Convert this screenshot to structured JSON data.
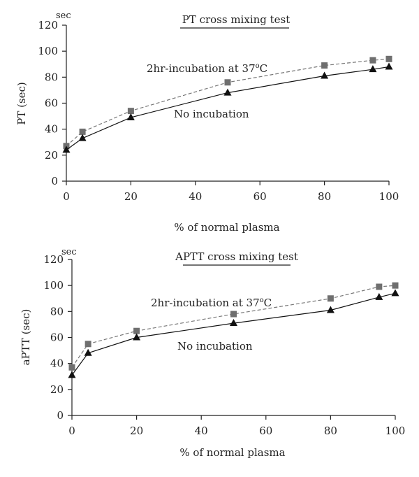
{
  "chart_data": [
    {
      "type": "line",
      "title": "PT cross mixing test",
      "unit_label": "sec",
      "xlabel": "% of normal plasma",
      "ylabel": "PT (sec)",
      "xlim": [
        0,
        100
      ],
      "ylim": [
        0,
        120
      ],
      "xticks": [
        0,
        20,
        40,
        60,
        80,
        100
      ],
      "yticks": [
        0,
        20,
        40,
        60,
        80,
        100,
        120
      ],
      "grid": false,
      "series": [
        {
          "name": "2hr-incubation at 37",
          "name_sup": "o",
          "name_suffix": "C",
          "marker": "square",
          "style": "dashed",
          "color": "#6f6f6f",
          "x": [
            0,
            5,
            20,
            50,
            80,
            95,
            100
          ],
          "y": [
            27,
            38,
            54,
            76,
            89,
            93,
            94
          ]
        },
        {
          "name": "No incubation",
          "marker": "triangle",
          "style": "solid",
          "color": "#111111",
          "x": [
            0,
            5,
            20,
            50,
            80,
            95,
            100
          ],
          "y": [
            24,
            33,
            49,
            68,
            81,
            86,
            88
          ]
        }
      ]
    },
    {
      "type": "line",
      "title": "APTT cross mixing test",
      "unit_label": "sec",
      "xlabel": "% of normal plasma",
      "ylabel": "aPTT (sec)",
      "xlim": [
        0,
        100
      ],
      "ylim": [
        0,
        120
      ],
      "xticks": [
        0,
        20,
        40,
        60,
        80,
        100
      ],
      "yticks": [
        0,
        20,
        40,
        60,
        80,
        100,
        120
      ],
      "grid": false,
      "series": [
        {
          "name": "2hr-incubation at 37",
          "name_sup": "o",
          "name_suffix": "C",
          "marker": "square",
          "style": "dashed",
          "color": "#6f6f6f",
          "x": [
            0,
            5,
            20,
            50,
            80,
            95,
            100
          ],
          "y": [
            37,
            55,
            65,
            78,
            90,
            99,
            100
          ]
        },
        {
          "name": "No incubation",
          "marker": "triangle",
          "style": "solid",
          "color": "#111111",
          "x": [
            0,
            5,
            20,
            50,
            80,
            95,
            100
          ],
          "y": [
            31,
            48,
            60,
            71,
            81,
            91,
            94
          ]
        }
      ]
    }
  ]
}
